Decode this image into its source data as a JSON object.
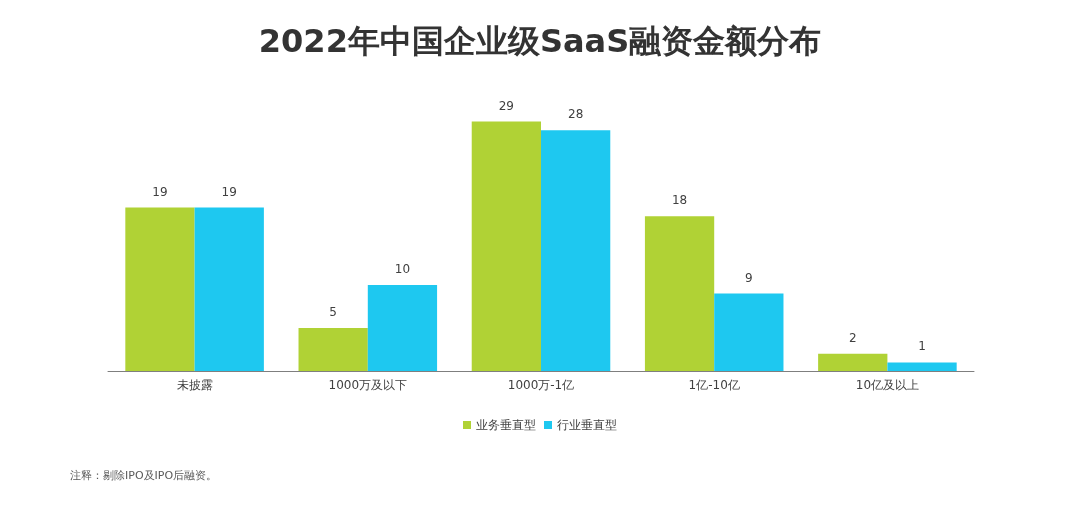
{
  "chart_data": {
    "type": "bar",
    "title": "2022年中国企业级SaaS融资金额分布",
    "categories": [
      "未披露",
      "1000万及以下",
      "1000万-1亿",
      "1亿-10亿",
      "10亿及以上"
    ],
    "series": [
      {
        "name": "业务垂直型",
        "color": "#b0d235",
        "values": [
          19,
          5,
          29,
          18,
          2
        ]
      },
      {
        "name": "行业垂直型",
        "color": "#1ec8f0",
        "values": [
          19,
          10,
          28,
          9,
          1
        ]
      }
    ],
    "data_labels": true,
    "legend": "bottom",
    "annotations": [
      "注释：剔除IPO及IPO后融资。"
    ]
  }
}
